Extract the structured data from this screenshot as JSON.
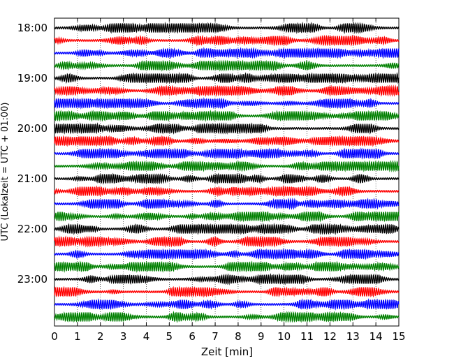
{
  "chart_data": {
    "type": "line",
    "plot_kind": "helicorder",
    "xlabel": "Zeit  [min]",
    "ylabel": "UTC (Lokalzeit = UTC + 01:00)",
    "xlim": [
      0,
      15
    ],
    "x_ticks": [
      "0",
      "1",
      "2",
      "3",
      "4",
      "5",
      "6",
      "7",
      "8",
      "9",
      "10",
      "11",
      "12",
      "13",
      "14",
      "15"
    ],
    "y_tick_labels": [
      "18:00",
      "19:00",
      "20:00",
      "21:00",
      "22:00",
      "23:00"
    ],
    "rows_per_hour": 4,
    "row_start_times": [
      "18:00",
      "18:15",
      "18:30",
      "18:45",
      "19:00",
      "19:15",
      "19:30",
      "19:45",
      "20:00",
      "20:15",
      "20:30",
      "20:45",
      "21:00",
      "21:15",
      "21:30",
      "21:45",
      "22:00",
      "22:15",
      "22:30",
      "22:45",
      "23:00",
      "23:15",
      "23:30",
      "23:45"
    ],
    "trace_colors": [
      "#000000",
      "#ff0000",
      "#0000ff",
      "#008000"
    ],
    "grid": {
      "vertical_dotted": true,
      "horizontal": false
    }
  }
}
